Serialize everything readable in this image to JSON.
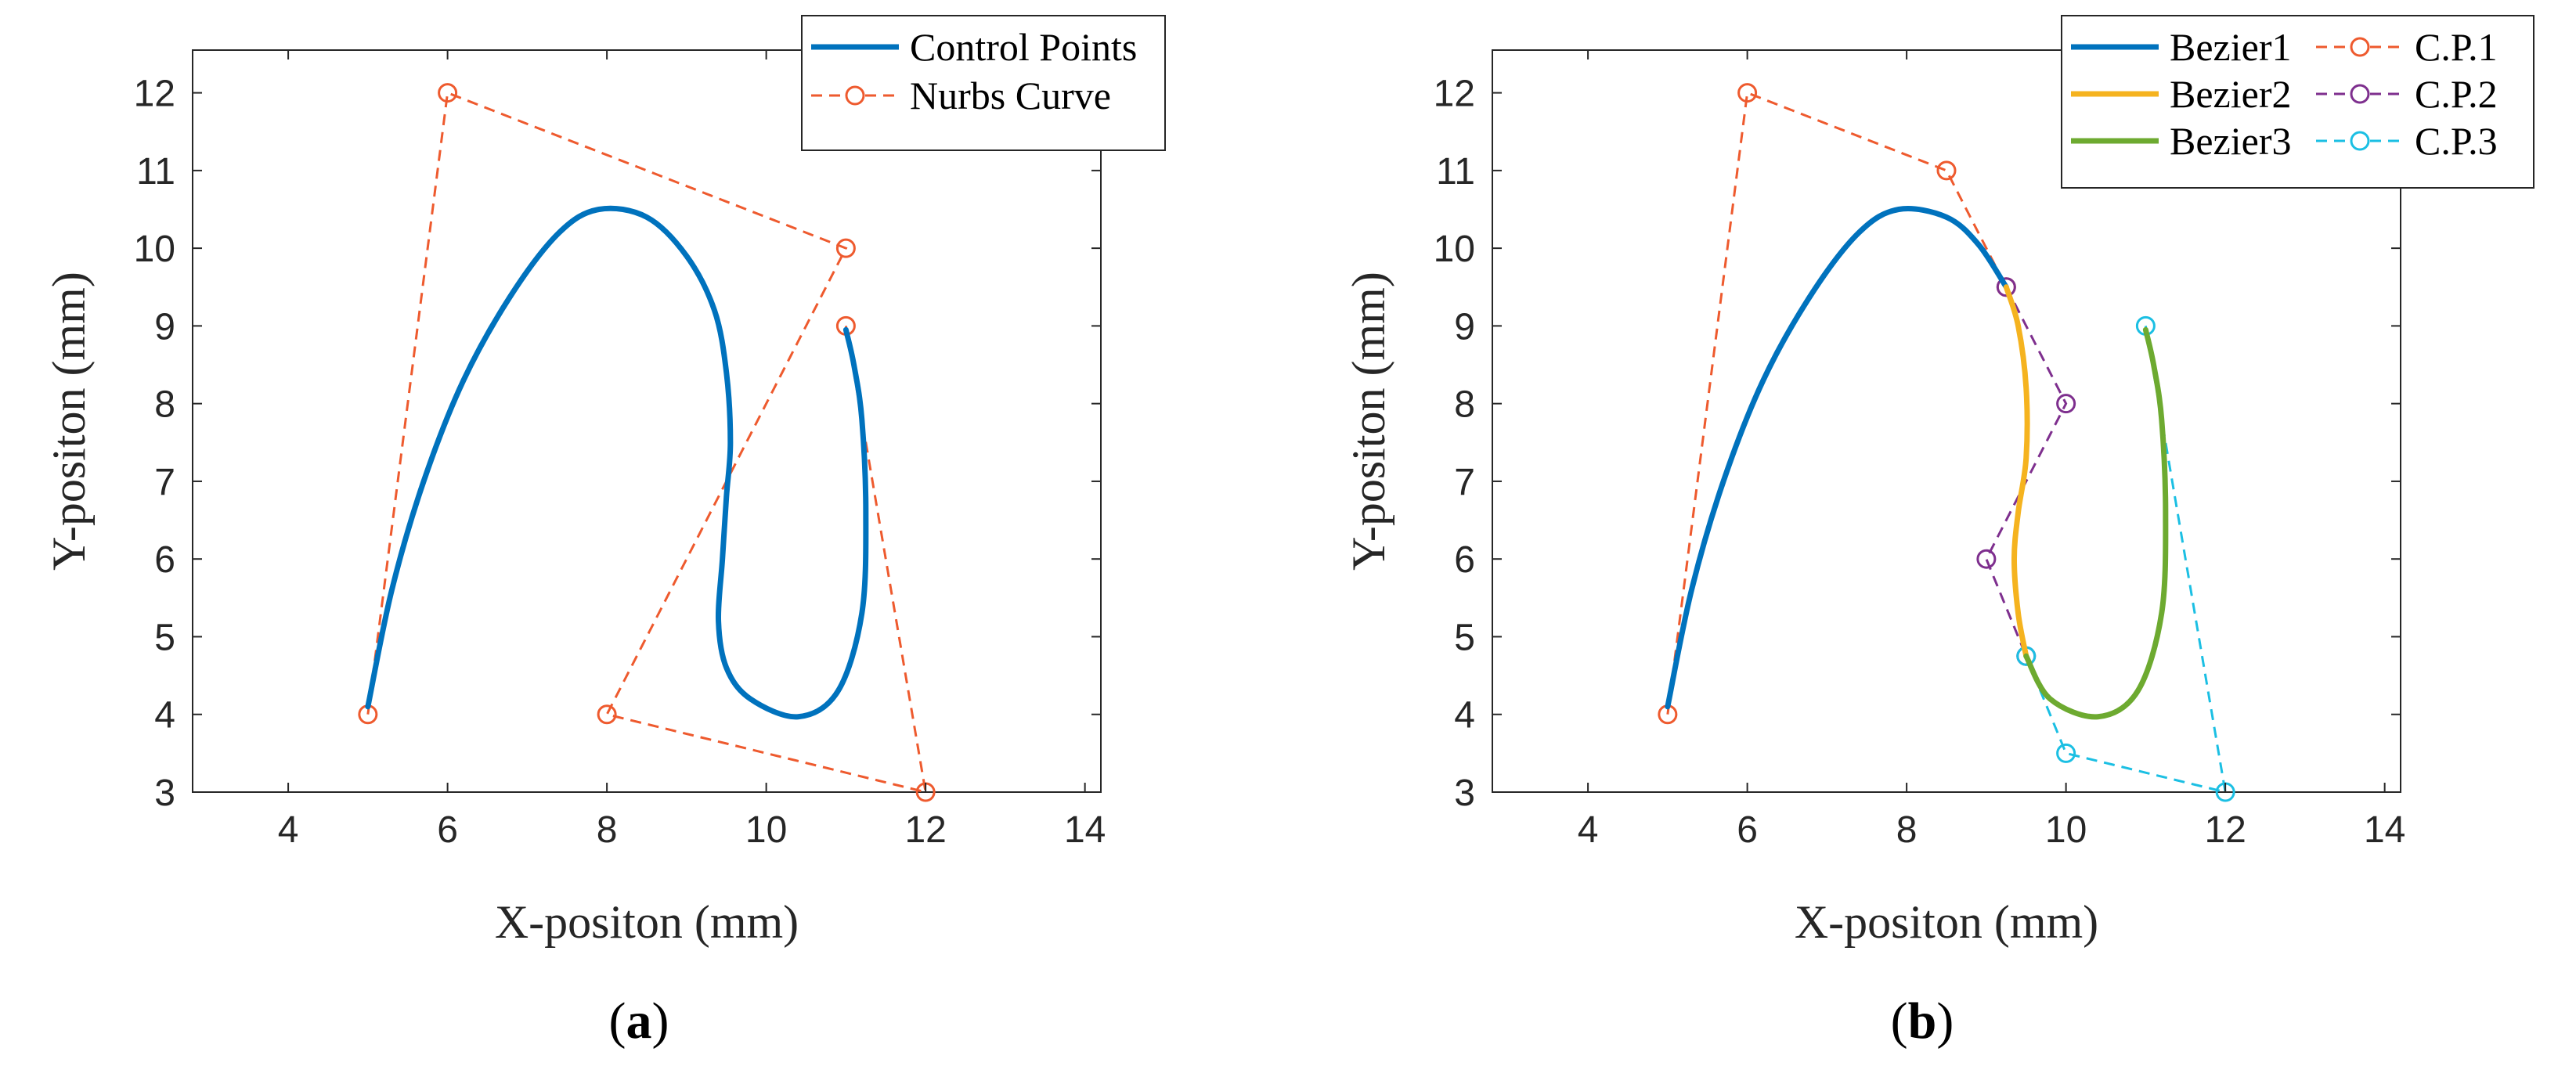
{
  "chart_data": [
    {
      "type": "line",
      "panel_label": {
        "open": "(",
        "letter": "a",
        "close": ")"
      },
      "xlabel": "X-positon (mm)",
      "ylabel": "Y-positon (mm)",
      "xlim": [
        2.8,
        14.2
      ],
      "ylim": [
        3,
        12.55
      ],
      "xticks": [
        4,
        6,
        8,
        10,
        12,
        14
      ],
      "yticks": [
        3,
        4,
        5,
        6,
        7,
        8,
        9,
        10,
        11,
        12
      ],
      "grid": false,
      "legend_position": "top-right",
      "series": [
        {
          "name": "Control Points",
          "style": "solid",
          "color": "#0072BD",
          "x": [
            5,
            5.3,
            5.7,
            6.2,
            6.8,
            7.4,
            7.9,
            8.5,
            9.0,
            9.35,
            9.5,
            9.55,
            9.5,
            9.45,
            9.4,
            9.5,
            9.8,
            10.4,
            10.9,
            11.2,
            11.25,
            11.2,
            11.1,
            11.0
          ],
          "y": [
            4.1,
            5.6,
            7.0,
            8.3,
            9.4,
            10.2,
            10.5,
            10.4,
            9.9,
            9.2,
            8.4,
            7.5,
            6.8,
            6.0,
            5.2,
            4.6,
            4.2,
            3.97,
            4.3,
            5.3,
            6.6,
            7.8,
            8.5,
            8.95
          ]
        },
        {
          "name": "Nurbs Curve",
          "style": "dashed-circle",
          "color": "#EE5A2E",
          "x": [
            5,
            6,
            11,
            8,
            12,
            11
          ],
          "y": [
            4,
            12,
            10,
            4,
            3,
            9
          ]
        }
      ]
    },
    {
      "type": "line",
      "panel_label": {
        "open": "(",
        "letter": "b",
        "close": ")"
      },
      "xlabel": "X-positon (mm)",
      "ylabel": "Y-positon (mm)",
      "xlim": [
        2.8,
        14.2
      ],
      "ylim": [
        3,
        12.55
      ],
      "xticks": [
        4,
        6,
        8,
        10,
        12,
        14
      ],
      "yticks": [
        3,
        4,
        5,
        6,
        7,
        8,
        9,
        10,
        11,
        12
      ],
      "grid": false,
      "legend_position": "top-right",
      "series": [
        {
          "name": "Bezier1",
          "style": "solid",
          "color": "#0072BD",
          "x": [
            5,
            5.3,
            5.7,
            6.2,
            6.8,
            7.4,
            7.9,
            8.5,
            8.9,
            9.25
          ],
          "y": [
            4.1,
            5.6,
            7.0,
            8.3,
            9.4,
            10.2,
            10.5,
            10.4,
            10.05,
            9.5
          ]
        },
        {
          "name": "Bezier2",
          "style": "solid",
          "color": "#F5B31F",
          "x": [
            9.25,
            9.4,
            9.5,
            9.5,
            9.4,
            9.35,
            9.4,
            9.5
          ],
          "y": [
            9.5,
            9.0,
            8.2,
            7.3,
            6.6,
            6.0,
            5.3,
            4.75
          ]
        },
        {
          "name": "Bezier3",
          "style": "solid",
          "color": "#6DAA30",
          "x": [
            9.5,
            9.8,
            10.4,
            10.9,
            11.2,
            11.25,
            11.2,
            11.1,
            11.0
          ],
          "y": [
            4.75,
            4.2,
            3.97,
            4.3,
            5.3,
            6.6,
            7.8,
            8.5,
            8.95
          ]
        },
        {
          "name": "C.P.1",
          "style": "dashed-circle",
          "color": "#EE5A2E",
          "x": [
            5,
            6,
            8.5,
            9.25
          ],
          "y": [
            4,
            12,
            11,
            9.5
          ]
        },
        {
          "name": "C.P.2",
          "style": "dashed-circle",
          "color": "#7E2F8E",
          "x": [
            9.25,
            10,
            9,
            9.5
          ],
          "y": [
            9.5,
            8,
            6,
            4.75
          ]
        },
        {
          "name": "C.P.3",
          "style": "dashed-circle",
          "color": "#1BBFE3",
          "x": [
            9.5,
            10,
            12,
            11
          ],
          "y": [
            4.75,
            3.5,
            3,
            9
          ]
        }
      ]
    }
  ]
}
